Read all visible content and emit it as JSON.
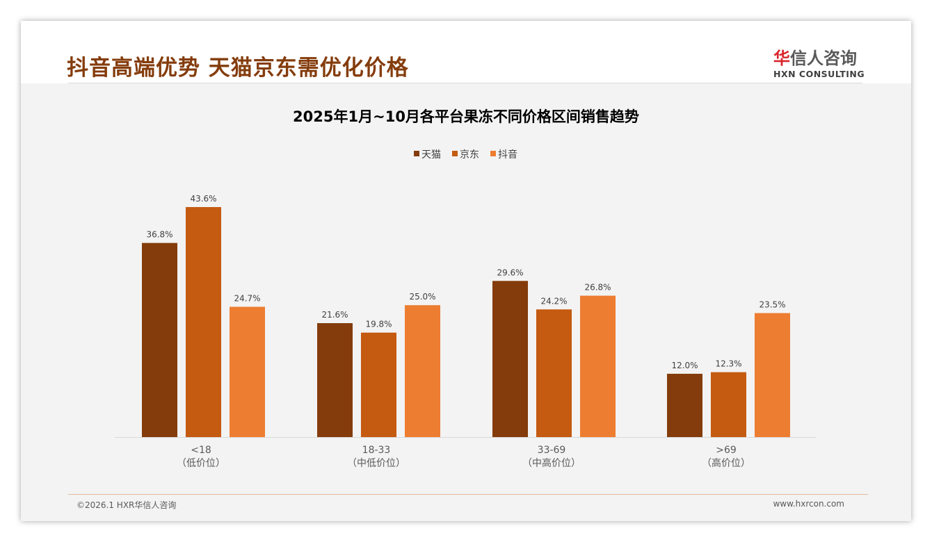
{
  "header": {
    "title": "抖音高端优势 天猫京东需优化价格",
    "logo_cn_red": "华",
    "logo_cn": "信人咨询",
    "logo_en": "HXN CONSULTING"
  },
  "footer": {
    "left": "©2026.1 HXR华信人咨询",
    "right": "www.hxrcon.com"
  },
  "chart_data": {
    "type": "bar",
    "title": "2025年1月~10月各平台果冻不同价格区间销售趋势",
    "categories": [
      "<18",
      "18-33",
      "33-69",
      ">69"
    ],
    "category_sublabels": [
      "（低价位）",
      "（中低价位）",
      "（中高价位）",
      "（高价位）"
    ],
    "series": [
      {
        "name": "天猫",
        "color": "#843C0C",
        "values": [
          36.8,
          21.6,
          29.6,
          12.0
        ]
      },
      {
        "name": "京东",
        "color": "#C55A11",
        "values": [
          43.6,
          19.8,
          24.2,
          12.3
        ]
      },
      {
        "name": "抖音",
        "color": "#ED7D31",
        "values": [
          24.7,
          25.0,
          26.8,
          23.5
        ]
      }
    ],
    "unit": "%",
    "ylim": [
      0,
      45
    ],
    "legend": "top-center",
    "grid": false
  }
}
